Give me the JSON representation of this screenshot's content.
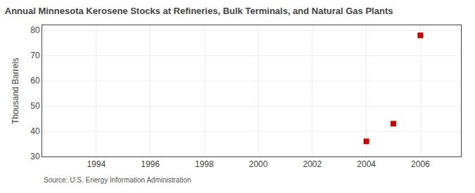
{
  "chart_data": {
    "type": "scatter",
    "title": "Annual Minnesota Kerosene Stocks at Refineries, Bulk Terminals, and Natural Gas Plants",
    "y_label": "Thousand Barrels",
    "annotations": [
      "Source: U.S. Energy Information Administration"
    ],
    "x": [
      2004,
      2005,
      2006
    ],
    "values": [
      36,
      43,
      78
    ],
    "color": "#cc0000",
    "marker": "square",
    "xlim": [
      1992.0,
      2007.5
    ],
    "ylim": [
      30,
      82
    ],
    "xticks": [
      1994,
      1996,
      1998,
      2000,
      2002,
      2004,
      2006
    ],
    "yticks": [
      30,
      40,
      50,
      60,
      70,
      80
    ],
    "grid": true
  }
}
